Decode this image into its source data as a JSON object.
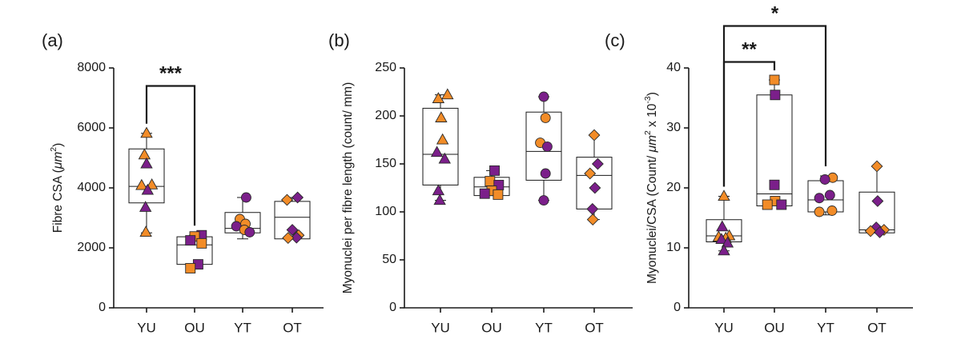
{
  "colors": {
    "orange": "#f28c28",
    "purple": "#7b1f8a",
    "edge": "#2a2a2a"
  },
  "chart_data": [
    {
      "type": "box",
      "panel_label": "(a)",
      "ylabel": "Fibre CSA (μm²)",
      "ylabel_main": "Fibre CSA (",
      "ylabel_unit": "μm",
      "ylabel_sup": "2",
      "ylabel_end": ")",
      "ylim": [
        0,
        8000
      ],
      "yticks": [
        0,
        2000,
        4000,
        6000,
        8000
      ],
      "categories": [
        "YU",
        "OU",
        "YT",
        "OT"
      ],
      "boxes": [
        {
          "min": 2500,
          "q1": 3500,
          "median": 4050,
          "q3": 5300,
          "max": 5820
        },
        {
          "min": 1320,
          "q1": 1450,
          "median": 2100,
          "q3": 2370,
          "max": 2420
        },
        {
          "min": 2300,
          "q1": 2500,
          "median": 2650,
          "q3": 3180,
          "max": 3680
        },
        {
          "min": 2300,
          "q1": 2300,
          "median": 3020,
          "q3": 3550,
          "max": 3680
        }
      ],
      "points": [
        [
          {
            "v": 5820,
            "c": "orange",
            "s": "triangle",
            "dx": 0.0
          },
          {
            "v": 5100,
            "c": "orange",
            "s": "triangle",
            "dx": -0.06
          },
          {
            "v": 4800,
            "c": "purple",
            "s": "triangle",
            "dx": 0.0
          },
          {
            "v": 4100,
            "c": "orange",
            "s": "triangle",
            "dx": 0.15
          },
          {
            "v": 4080,
            "c": "orange",
            "s": "triangle",
            "dx": -0.14
          },
          {
            "v": 3920,
            "c": "purple",
            "s": "triangle",
            "dx": 0.03
          },
          {
            "v": 3350,
            "c": "purple",
            "s": "triangle",
            "dx": -0.03
          },
          {
            "v": 2520,
            "c": "orange",
            "s": "triangle",
            "dx": -0.02
          }
        ],
        [
          {
            "v": 2420,
            "c": "purple",
            "s": "square",
            "dx": 0.2
          },
          {
            "v": 2380,
            "c": "orange",
            "s": "square",
            "dx": 0.0
          },
          {
            "v": 2250,
            "c": "purple",
            "s": "square",
            "dx": -0.12
          },
          {
            "v": 2150,
            "c": "orange",
            "s": "square",
            "dx": 0.2
          },
          {
            "v": 1450,
            "c": "purple",
            "s": "square",
            "dx": 0.1
          },
          {
            "v": 1320,
            "c": "orange",
            "s": "square",
            "dx": -0.12
          }
        ],
        [
          {
            "v": 3680,
            "c": "purple",
            "s": "circle",
            "dx": 0.1
          },
          {
            "v": 2960,
            "c": "orange",
            "s": "circle",
            "dx": -0.08
          },
          {
            "v": 2800,
            "c": "orange",
            "s": "circle",
            "dx": 0.08
          },
          {
            "v": 2720,
            "c": "purple",
            "s": "circle",
            "dx": -0.18
          },
          {
            "v": 2600,
            "c": "orange",
            "s": "circle",
            "dx": 0.05
          },
          {
            "v": 2520,
            "c": "purple",
            "s": "circle",
            "dx": 0.2
          }
        ],
        [
          {
            "v": 3680,
            "c": "purple",
            "s": "diamond",
            "dx": 0.15
          },
          {
            "v": 3600,
            "c": "orange",
            "s": "diamond",
            "dx": -0.15
          },
          {
            "v": 2600,
            "c": "purple",
            "s": "diamond",
            "dx": 0.0
          },
          {
            "v": 2420,
            "c": "orange",
            "s": "diamond",
            "dx": 0.18
          },
          {
            "v": 2340,
            "c": "purple",
            "s": "diamond",
            "dx": 0.12
          },
          {
            "v": 2330,
            "c": "orange",
            "s": "diamond",
            "dx": -0.12
          }
        ]
      ],
      "significance": [
        {
          "from": 0,
          "to": 1,
          "label": "***",
          "level": 7400
        }
      ]
    },
    {
      "type": "box",
      "panel_label": "(b)",
      "ylabel": "Myonuclei per fibre length (count/ mm)",
      "ylim": [
        0,
        250
      ],
      "yticks": [
        0,
        50,
        100,
        150,
        200,
        250
      ],
      "categories": [
        "YU",
        "OU",
        "YT",
        "OT"
      ],
      "boxes": [
        {
          "min": 112,
          "q1": 128,
          "median": 160,
          "q3": 208,
          "max": 222
        },
        {
          "min": 117,
          "q1": 117,
          "median": 126,
          "q3": 136,
          "max": 143
        },
        {
          "min": 112,
          "q1": 133,
          "median": 163,
          "q3": 204,
          "max": 220
        },
        {
          "min": 92,
          "q1": 103,
          "median": 138,
          "q3": 157,
          "max": 180
        }
      ],
      "points": [
        [
          {
            "v": 222,
            "c": "orange",
            "s": "triangle",
            "dx": 0.2
          },
          {
            "v": 218,
            "c": "orange",
            "s": "triangle",
            "dx": -0.06
          },
          {
            "v": 198,
            "c": "orange",
            "s": "triangle",
            "dx": 0.02
          },
          {
            "v": 175,
            "c": "orange",
            "s": "triangle",
            "dx": 0.06
          },
          {
            "v": 162,
            "c": "purple",
            "s": "triangle",
            "dx": -0.1
          },
          {
            "v": 155,
            "c": "purple",
            "s": "triangle",
            "dx": 0.12
          },
          {
            "v": 122,
            "c": "purple",
            "s": "triangle",
            "dx": -0.06
          },
          {
            "v": 112,
            "c": "purple",
            "s": "triangle",
            "dx": -0.02
          }
        ],
        [
          {
            "v": 143,
            "c": "purple",
            "s": "square",
            "dx": 0.08
          },
          {
            "v": 132,
            "c": "orange",
            "s": "square",
            "dx": -0.05
          },
          {
            "v": 128,
            "c": "purple",
            "s": "square",
            "dx": 0.2
          },
          {
            "v": 122,
            "c": "orange",
            "s": "square",
            "dx": 0.0
          },
          {
            "v": 119,
            "c": "purple",
            "s": "square",
            "dx": -0.2
          },
          {
            "v": 118,
            "c": "orange",
            "s": "square",
            "dx": 0.18
          }
        ],
        [
          {
            "v": 220,
            "c": "purple",
            "s": "circle",
            "dx": 0.0
          },
          {
            "v": 198,
            "c": "orange",
            "s": "circle",
            "dx": 0.05
          },
          {
            "v": 172,
            "c": "orange",
            "s": "circle",
            "dx": -0.1
          },
          {
            "v": 168,
            "c": "purple",
            "s": "circle",
            "dx": 0.1
          },
          {
            "v": 140,
            "c": "purple",
            "s": "circle",
            "dx": 0.05
          },
          {
            "v": 112,
            "c": "purple",
            "s": "circle",
            "dx": 0.0
          }
        ],
        [
          {
            "v": 180,
            "c": "orange",
            "s": "diamond",
            "dx": 0.0
          },
          {
            "v": 150,
            "c": "purple",
            "s": "diamond",
            "dx": 0.1
          },
          {
            "v": 140,
            "c": "orange",
            "s": "diamond",
            "dx": -0.12
          },
          {
            "v": 125,
            "c": "purple",
            "s": "diamond",
            "dx": 0.02
          },
          {
            "v": 103,
            "c": "purple",
            "s": "diamond",
            "dx": -0.05
          },
          {
            "v": 92,
            "c": "orange",
            "s": "diamond",
            "dx": -0.04
          }
        ]
      ],
      "significance": []
    },
    {
      "type": "box",
      "panel_label": "(c)",
      "ylabel": "Myonuclei/CSA (Count/ μm² x 10⁻³)",
      "ylabel_main": "Myonuclei/CSA (Count/ ",
      "ylabel_unit": "μm",
      "ylabel_sup": "2",
      "ylabel_mid": " x 10",
      "ylabel_sup2": "-3",
      "ylabel_end": ")",
      "ylim": [
        0,
        40
      ],
      "yticks": [
        0,
        10,
        20,
        30,
        40
      ],
      "categories": [
        "YU",
        "OU",
        "YT",
        "OT"
      ],
      "boxes": [
        {
          "min": 9.5,
          "q1": 11.0,
          "median": 12.0,
          "q3": 14.7,
          "max": 18.6
        },
        {
          "min": 17.0,
          "q1": 17.0,
          "median": 19.0,
          "q3": 35.5,
          "max": 38.0
        },
        {
          "min": 15.5,
          "q1": 16.0,
          "median": 18.0,
          "q3": 21.2,
          "max": 22.0
        },
        {
          "min": 12.5,
          "q1": 12.5,
          "median": 13.0,
          "q3": 19.3,
          "max": 23.6
        }
      ],
      "points": [
        [
          {
            "v": 18.6,
            "c": "orange",
            "s": "triangle",
            "dx": 0.0
          },
          {
            "v": 13.5,
            "c": "purple",
            "s": "triangle",
            "dx": -0.05
          },
          {
            "v": 12.0,
            "c": "orange",
            "s": "triangle",
            "dx": 0.15
          },
          {
            "v": 11.8,
            "c": "orange",
            "s": "triangle",
            "dx": -0.15
          },
          {
            "v": 11.6,
            "c": "orange",
            "s": "triangle",
            "dx": 0.05
          },
          {
            "v": 11.4,
            "c": "purple",
            "s": "triangle",
            "dx": -0.07
          },
          {
            "v": 10.8,
            "c": "purple",
            "s": "triangle",
            "dx": 0.1
          },
          {
            "v": 9.5,
            "c": "purple",
            "s": "triangle",
            "dx": 0.0
          }
        ],
        [
          {
            "v": 38.0,
            "c": "orange",
            "s": "square",
            "dx": 0.0
          },
          {
            "v": 35.5,
            "c": "purple",
            "s": "square",
            "dx": 0.02
          },
          {
            "v": 20.5,
            "c": "purple",
            "s": "square",
            "dx": 0.0
          },
          {
            "v": 17.8,
            "c": "orange",
            "s": "square",
            "dx": 0.02
          },
          {
            "v": 17.2,
            "c": "orange",
            "s": "square",
            "dx": -0.2
          },
          {
            "v": 17.2,
            "c": "purple",
            "s": "square",
            "dx": 0.2
          }
        ],
        [
          {
            "v": 21.7,
            "c": "orange",
            "s": "circle",
            "dx": 0.2
          },
          {
            "v": 21.4,
            "c": "purple",
            "s": "circle",
            "dx": -0.02
          },
          {
            "v": 18.8,
            "c": "purple",
            "s": "circle",
            "dx": 0.12
          },
          {
            "v": 18.3,
            "c": "purple",
            "s": "circle",
            "dx": -0.18
          },
          {
            "v": 16.2,
            "c": "orange",
            "s": "circle",
            "dx": 0.18
          },
          {
            "v": 16.0,
            "c": "orange",
            "s": "circle",
            "dx": -0.18
          }
        ],
        [
          {
            "v": 23.6,
            "c": "orange",
            "s": "diamond",
            "dx": 0.0
          },
          {
            "v": 17.8,
            "c": "purple",
            "s": "diamond",
            "dx": 0.02
          },
          {
            "v": 13.4,
            "c": "purple",
            "s": "diamond",
            "dx": -0.02
          },
          {
            "v": 13.0,
            "c": "orange",
            "s": "diamond",
            "dx": 0.2
          },
          {
            "v": 12.8,
            "c": "orange",
            "s": "diamond",
            "dx": -0.18
          },
          {
            "v": 12.6,
            "c": "purple",
            "s": "diamond",
            "dx": 0.08
          }
        ]
      ],
      "significance": [
        {
          "from": 0,
          "to": 1,
          "label": "**",
          "level": 41.0
        },
        {
          "from": 0,
          "to": 2,
          "label": "*",
          "level": 47.0
        }
      ]
    }
  ]
}
